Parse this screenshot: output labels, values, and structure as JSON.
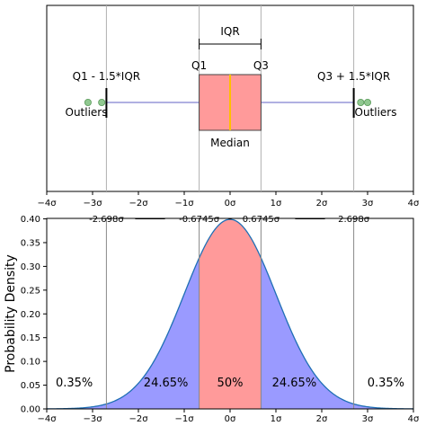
{
  "figure": {
    "boxplot": {
      "iqr_label": "IQR",
      "q1_label": "Q1",
      "q3_label": "Q3",
      "median_label": "Median",
      "lower_whisker_label": "Q1 - 1.5*IQR",
      "upper_whisker_label": "Q3 + 1.5*IQR",
      "outliers_left_label": "Outliers",
      "outliers_right_label": "Outliers",
      "x_ticks": [
        "−4σ",
        "−3σ",
        "−2σ",
        "−1σ",
        "0σ",
        "1σ",
        "2σ",
        "3σ",
        "4σ"
      ],
      "q1": -0.6745,
      "q3": 0.6745,
      "median": 0,
      "whisker_low": -2.698,
      "whisker_high": 2.698,
      "outliers": [
        -3.1,
        -2.8,
        2.85,
        3.0
      ],
      "colors": {
        "box": "#ff9a9a",
        "median": "#ffc000",
        "whisker": "#8080d0",
        "outlier": "#90c890"
      }
    },
    "pdf": {
      "ylabel": "Probability Density",
      "top_labels": [
        "-2.698σ",
        "-0.6745σ",
        "0.6745σ",
        "2.698σ"
      ],
      "y_ticks": [
        "0.00",
        "0.05",
        "0.10",
        "0.15",
        "0.20",
        "0.25",
        "0.30",
        "0.35",
        "0.40"
      ],
      "x_ticks": [
        "−4σ",
        "−3σ",
        "−2σ",
        "−1σ",
        "0σ",
        "1σ",
        "2σ",
        "3σ",
        "4σ"
      ],
      "regions": [
        {
          "label": "0.35%",
          "from": -4,
          "to": -2.698,
          "color": "#9a9aff"
        },
        {
          "label": "24.65%",
          "from": -2.698,
          "to": -0.6745,
          "color": "#9a9aff"
        },
        {
          "label": "50%",
          "from": -0.6745,
          "to": 0.6745,
          "color": "#ff9a9a"
        },
        {
          "label": "24.65%",
          "from": 0.6745,
          "to": 2.698,
          "color": "#9a9aff"
        },
        {
          "label": "0.35%",
          "from": 2.698,
          "to": 4,
          "color": "#9a9aff"
        }
      ],
      "curve_color": "#1f6fb5"
    }
  },
  "chart_data": {
    "type": "area",
    "x": [
      -4,
      -3.5,
      -3,
      -2.698,
      -2.5,
      -2,
      -1.5,
      -1,
      -0.6745,
      -0.5,
      0,
      0.5,
      0.6745,
      1,
      1.5,
      2,
      2.5,
      2.698,
      3,
      3.5,
      4
    ],
    "y": [
      0.0001,
      0.0009,
      0.0044,
      0.0104,
      0.0175,
      0.054,
      0.1295,
      0.242,
      0.3178,
      0.3521,
      0.3989,
      0.3521,
      0.3178,
      0.242,
      0.1295,
      0.054,
      0.0175,
      0.0104,
      0.0044,
      0.0009,
      0.0001
    ],
    "xlim": [
      -4,
      4
    ],
    "ylim": [
      0,
      0.4
    ],
    "ylabel": "Probability Density",
    "series": [
      {
        "values": [
          0.0001,
          0.0009,
          0.0044,
          0.0104,
          0.0175,
          0.054,
          0.1295,
          0.242,
          0.3178,
          0.3521,
          0.3989,
          0.3521,
          0.3178,
          0.242,
          0.1295,
          0.054,
          0.0175,
          0.0104,
          0.0044,
          0.0009,
          0.0001
        ]
      }
    ]
  }
}
